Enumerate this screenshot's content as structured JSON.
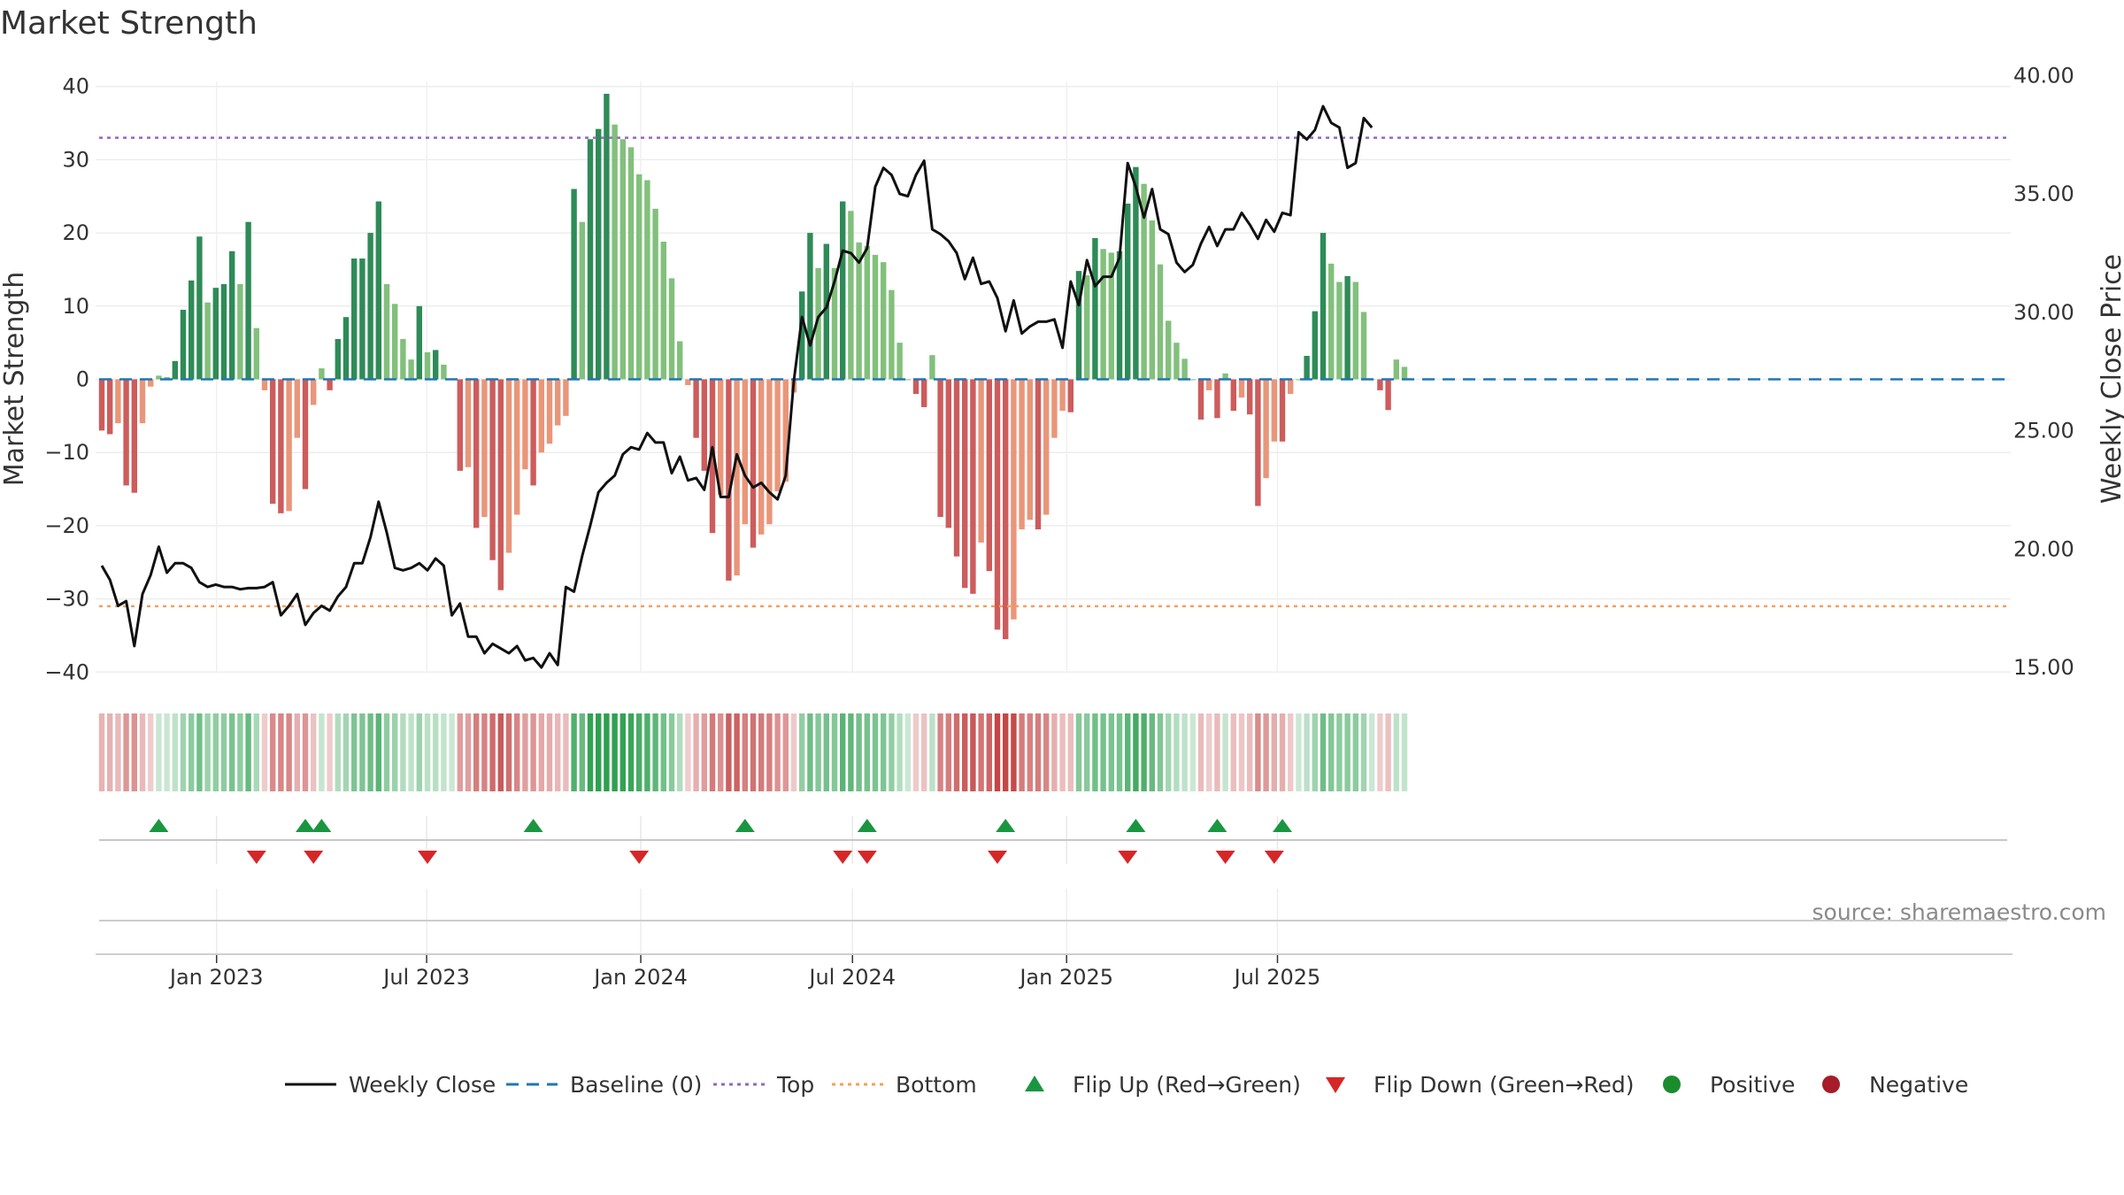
{
  "chart_data": {
    "type": "bar",
    "title": "Market Strength",
    "ylabel_left": "Market Strength",
    "ylabel_right": "Weekly Close Price",
    "source": "source: sharemaestro.com",
    "y_left": {
      "min": -40,
      "max": 40,
      "ticks": [
        "40",
        "30",
        "20",
        "10",
        "0",
        "−10",
        "−20",
        "−30",
        "−40"
      ],
      "tick_values": [
        40,
        30,
        20,
        10,
        0,
        -10,
        -20,
        -30,
        -40
      ]
    },
    "y_right": {
      "min": 15,
      "max": 40,
      "ticks": [
        "40.00",
        "35.00",
        "30.00",
        "25.00",
        "20.00",
        "15.00"
      ],
      "tick_values": [
        40,
        35,
        30,
        25,
        20,
        15
      ]
    },
    "x_ticks": [
      {
        "label": "Jan 2023",
        "week": 14.1
      },
      {
        "label": "Jul 2023",
        "week": 39.9
      },
      {
        "label": "Jan 2024",
        "week": 66.2
      },
      {
        "label": "Jul 2024",
        "week": 92.2
      },
      {
        "label": "Jan 2025",
        "week": 118.5
      },
      {
        "label": "Jul 2025",
        "week": 144.4
      }
    ],
    "top_line": 33,
    "bottom_line": -31,
    "strength": [
      -7,
      -7.5,
      -6,
      -14.5,
      -15.5,
      -6,
      -1,
      0.5,
      0.3,
      2.5,
      9.5,
      13.5,
      19.5,
      10.5,
      12.5,
      13,
      17.5,
      13,
      21.5,
      7,
      -1.5,
      -17,
      -18.3,
      -18,
      -8,
      -15,
      -3.5,
      1.5,
      -1.5,
      5.5,
      8.5,
      16.5,
      16.5,
      20,
      24.3,
      13,
      10.3,
      5.5,
      2.7,
      10,
      3.7,
      4,
      2,
      0,
      -12.5,
      -12,
      -20.3,
      -18.8,
      -24.7,
      -28.8,
      -23.7,
      -18.5,
      -12.3,
      -14.5,
      -10,
      -8.8,
      -6.3,
      -5,
      26,
      21.5,
      32.8,
      34.2,
      39,
      34.8,
      32.8,
      31.7,
      28,
      27.2,
      23.3,
      18.8,
      13.8,
      5.2,
      -0.8,
      -8,
      -12.5,
      -21,
      -15.8,
      -27.5,
      -26.8,
      -19.8,
      -23,
      -21.2,
      -19.8,
      -15.3,
      -14,
      -1.8,
      12,
      20,
      15.2,
      18.5,
      15.2,
      24.3,
      23,
      18.7,
      18.2,
      17,
      16,
      12.2,
      5,
      0,
      -2,
      -3.8,
      3.3,
      -18.8,
      -20.3,
      -24.2,
      -28.5,
      -29.3,
      -22.3,
      -26.2,
      -34.2,
      -35.5,
      -32.8,
      -20.5,
      -19.2,
      -20.5,
      -18.5,
      -8,
      -4.3,
      -4.5,
      14.8,
      14.2,
      19.3,
      17.8,
      17.3,
      17.5,
      24,
      29,
      26.7,
      21.7,
      15.7,
      8,
      5,
      2.8,
      0,
      -5.5,
      -1.5,
      -5.3,
      0.8,
      -4.3,
      -2.5,
      -4.8,
      -17.3,
      -13.5,
      -8.5,
      -8.5,
      -2,
      0,
      3.2,
      9.3,
      20,
      15.8,
      13.3,
      14.1,
      13.3,
      9.2,
      0,
      -1.5,
      -4.2,
      2.7,
      1.7
    ],
    "weekly_close": [
      19.3,
      18.7,
      17.6,
      17.8,
      15.9,
      18.1,
      18.9,
      20.1,
      19,
      19.4,
      19.4,
      19.2,
      18.6,
      18.4,
      18.5,
      18.4,
      18.4,
      18.3,
      18.35,
      18.35,
      18.4,
      18.6,
      17.2,
      17.6,
      18.1,
      16.8,
      17.3,
      17.6,
      17.4,
      18,
      18.4,
      19.4,
      19.4,
      20.5,
      22,
      20.7,
      19.2,
      19.1,
      19.2,
      19.4,
      19.1,
      19.6,
      19.3,
      17.2,
      17.7,
      16.3,
      16.3,
      15.6,
      16,
      15.8,
      15.6,
      15.9,
      15.3,
      15.4,
      15,
      15.6,
      15.1,
      18.4,
      18.2,
      19.7,
      21,
      22.4,
      22.8,
      23.1,
      24,
      24.3,
      24.2,
      24.9,
      24.5,
      24.5,
      23.2,
      23.9,
      22.9,
      23,
      22.5,
      24.3,
      22.2,
      22.2,
      24,
      23.1,
      22.6,
      22.8,
      22.4,
      22.1,
      23.1,
      27.1,
      29.8,
      28.6,
      29.8,
      30.2,
      31.3,
      32.6,
      32.5,
      32.1,
      32.7,
      35.3,
      36.1,
      35.8,
      35,
      34.9,
      35.8,
      36.4,
      33.5,
      33.3,
      33,
      32.5,
      31.4,
      32.3,
      31.2,
      31.3,
      30.6,
      29.2,
      30.5,
      29.1,
      29.4,
      29.6,
      29.6,
      29.7,
      28.5,
      31.3,
      30.3,
      32.2,
      31.1,
      31.5,
      31.5,
      32.3,
      36.3,
      35.3,
      34,
      35.2,
      33.5,
      33.3,
      32.1,
      31.7,
      32,
      32.9,
      33.6,
      32.8,
      33.5,
      33.5,
      34.2,
      33.7,
      33.1,
      33.9,
      33.4,
      34.2,
      34.1,
      37.6,
      37.3,
      37.7,
      38.7,
      38,
      37.8,
      36.1,
      36.3,
      38.2,
      37.8
    ],
    "flip_up_weeks": [
      7,
      25,
      27,
      53,
      79,
      94,
      111,
      127,
      137,
      145
    ],
    "flip_down_weeks": [
      19,
      26,
      40,
      66,
      91,
      94,
      110,
      126,
      138,
      144
    ],
    "band_note": "regime band shaded green (positive) / red (negative) by week",
    "legend": [
      {
        "label": "Weekly Close",
        "kind": "line",
        "color": "#111111"
      },
      {
        "label": "Baseline (0)",
        "kind": "dash",
        "color": "#1f77b4"
      },
      {
        "label": "Top",
        "kind": "dot",
        "color": "#9467bd"
      },
      {
        "label": "Bottom",
        "kind": "dot",
        "color": "#f4a05a"
      },
      {
        "label": "Flip Up (Red→Green)",
        "kind": "tri-up",
        "color": "#1a9641"
      },
      {
        "label": "Flip Down (Green→Red)",
        "kind": "tri-down",
        "color": "#d62728"
      },
      {
        "label": "Positive",
        "kind": "dot-marker",
        "color": "#1a8c2e"
      },
      {
        "label": "Negative",
        "kind": "dot-marker",
        "color": "#a61c28"
      }
    ],
    "colors": {
      "pos_strong": "#2e8b57",
      "pos_weak": "#82c07c",
      "neg_strong": "#cd5c5c",
      "neg_weak": "#e9967a",
      "top": "#9467bd",
      "bottom": "#f4a05a",
      "baseline": "#1f77b4",
      "price": "#111111"
    }
  }
}
